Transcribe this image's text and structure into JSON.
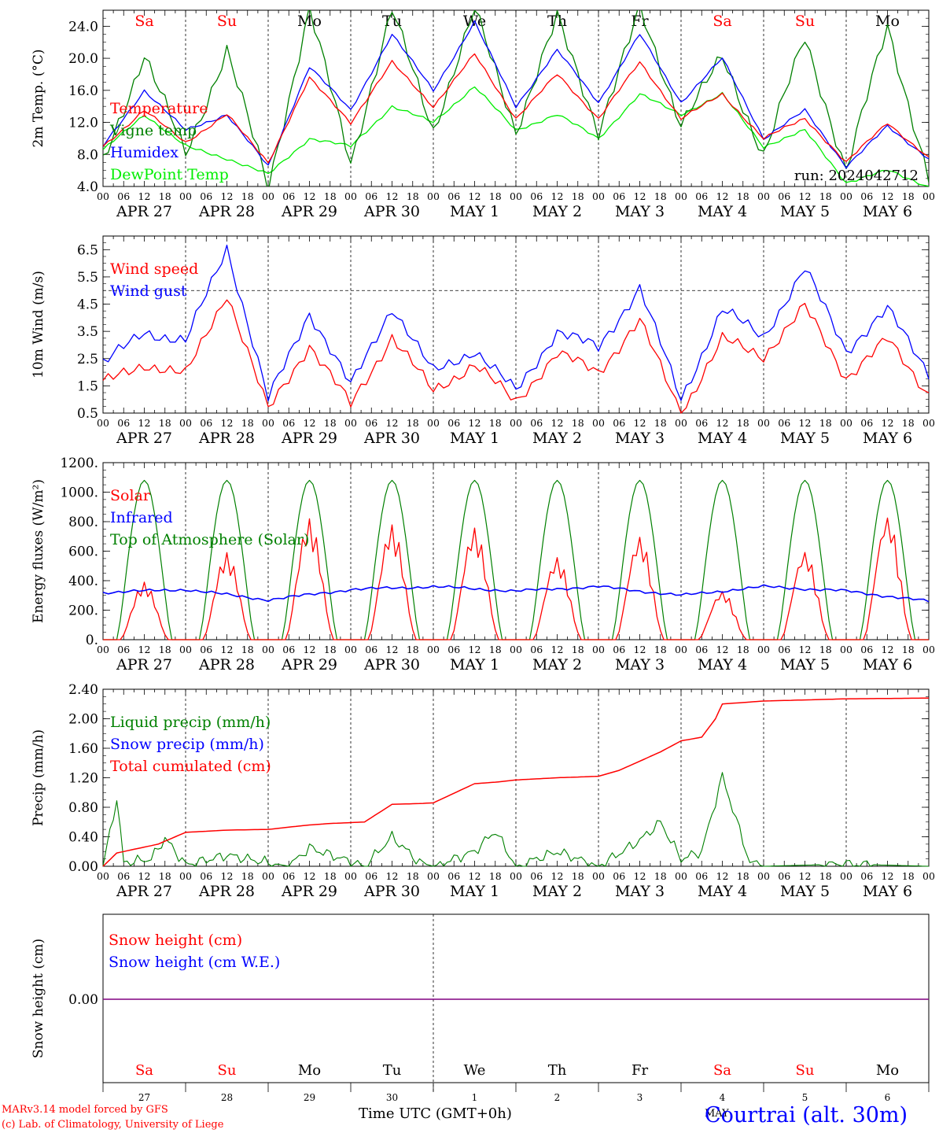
{
  "footer": {
    "model_line": "MARv3.14 model forced by GFS",
    "credit_line": "(c) Lab. of Climatology, University of Liege",
    "time_axis_label": "Time UTC (GMT+0h)",
    "month_label": "MAY",
    "station": "Courtrai (alt. 30m)"
  },
  "colors": {
    "red": "#ff0000",
    "green": "#008000",
    "blue": "#0000ff",
    "lightgreen": "#00ee00",
    "purple": "#800080"
  },
  "days": [
    "Sa",
    "Su",
    "Mo",
    "Tu",
    "We",
    "Th",
    "Fr",
    "Sa",
    "Su",
    "Mo"
  ],
  "weekend_flags": [
    true,
    true,
    false,
    false,
    false,
    false,
    false,
    true,
    true,
    false
  ],
  "date_labels": [
    "APR 27",
    "APR 28",
    "APR 29",
    "APR 30",
    "MAY  1",
    "MAY  2",
    "MAY  3",
    "MAY  4",
    "MAY  5",
    "MAY  6"
  ],
  "hour_labels": [
    "00",
    "06",
    "12",
    "18"
  ],
  "final_hour_label": "00",
  "bottom_day_numbers": [
    "27",
    "28",
    "29",
    "30",
    "1",
    "2",
    "3",
    "4",
    "5",
    "6"
  ],
  "chart_data": [
    {
      "type": "line",
      "ylabel": "2m Temp. (°C)",
      "ylim": [
        4,
        26
      ],
      "yticks": [
        "4.0",
        "8.0",
        "12.0",
        "16.0",
        "20.0",
        "24.0"
      ],
      "run_label": "run: 2024042712",
      "legend": [
        "Temperature",
        "Vigne temp",
        "Humidex",
        "DewPoint Temp"
      ],
      "x_hours": [
        0,
        12,
        24,
        36,
        48,
        60,
        72,
        84,
        96,
        108,
        120,
        132,
        144,
        156,
        168,
        180,
        192,
        204,
        216,
        228,
        240
      ],
      "series": [
        {
          "name": "Temperature",
          "color": "red",
          "values": [
            9,
            13.5,
            9.5,
            13,
            7,
            17.5,
            12,
            19.5,
            14,
            20.5,
            12.5,
            18,
            12.5,
            19.5,
            12.5,
            15.5,
            10,
            12.5,
            7,
            12,
            7.5
          ]
        },
        {
          "name": "Vigne temp",
          "color": "green",
          "values": [
            7,
            20.5,
            8,
            21,
            4,
            26,
            7,
            26,
            11,
            26,
            11,
            25,
            11,
            26,
            12,
            20,
            8,
            22.5,
            6,
            24,
            5
          ]
        },
        {
          "name": "Humidex",
          "color": "blue",
          "values": [
            9,
            16,
            11,
            13,
            6.5,
            19,
            13.5,
            23,
            16,
            24.5,
            14,
            21,
            14.5,
            23,
            14.5,
            20,
            10,
            13.5,
            6.5,
            11.5,
            7.5
          ]
        },
        {
          "name": "DewPoint Temp",
          "color": "lightgreen",
          "values": [
            8.5,
            13,
            9,
            7.5,
            5.5,
            10,
            9,
            14,
            12,
            16.5,
            11,
            13,
            10,
            15.5,
            13,
            15.5,
            9,
            11,
            4.5,
            6,
            4
          ]
        }
      ]
    },
    {
      "type": "line",
      "ylabel": "10m Wind (m/s)",
      "ylim": [
        0.5,
        7
      ],
      "yticks": [
        "0.5",
        "1.5",
        "2.5",
        "3.5",
        "4.5",
        "5.5",
        "6.5"
      ],
      "threshold": 5,
      "legend": [
        "Wind speed",
        "Wind gust"
      ],
      "x_hours": [
        0,
        12,
        24,
        36,
        48,
        60,
        72,
        84,
        96,
        108,
        120,
        132,
        144,
        156,
        168,
        180,
        192,
        204,
        216,
        228,
        240
      ],
      "series": [
        {
          "name": "Wind speed",
          "color": "red",
          "values": [
            1.6,
            2.3,
            1.9,
            4.9,
            0.6,
            3.0,
            0.8,
            3.3,
            1.3,
            2.3,
            0.9,
            2.7,
            2.0,
            3.9,
            0.5,
            3.2,
            2.6,
            4.4,
            1.8,
            3.2,
            1.2
          ]
        },
        {
          "name": "Wind gust",
          "color": "blue",
          "values": [
            2.3,
            3.5,
            3.1,
            6.6,
            1.0,
            4.2,
            1.5,
            4.4,
            2.0,
            2.8,
            1.3,
            3.5,
            2.9,
            5.1,
            1.0,
            4.3,
            3.3,
            5.8,
            2.8,
            4.3,
            2.0
          ]
        }
      ]
    },
    {
      "type": "line",
      "ylabel": "Energy fluxes (W/m²)",
      "ylim": [
        0,
        1200
      ],
      "yticks": [
        "0.",
        "200.",
        "400.",
        "600.",
        "800.",
        "1000.",
        "1200."
      ],
      "legend": [
        "Solar",
        "Infrared",
        "Top of Atmosphere (Solar)"
      ],
      "solar_peaks": [
        390,
        590,
        820,
        780,
        760,
        560,
        700,
        330,
        600,
        840
      ],
      "toa_peak": 1080,
      "infrared": {
        "x_hours": [
          0,
          24,
          48,
          72,
          96,
          120,
          144,
          168,
          192,
          216,
          240
        ],
        "values": [
          320,
          340,
          270,
          340,
          360,
          330,
          360,
          300,
          360,
          330,
          260
        ]
      }
    },
    {
      "type": "line",
      "ylabel": "Precip (mm/h)",
      "ylim": [
        0,
        2.4
      ],
      "yticks": [
        "0.00",
        "0.40",
        "0.80",
        "1.20",
        "1.60",
        "2.00",
        "2.40"
      ],
      "legend": [
        "Liquid precip (mm/h)",
        "Snow precip (mm/h)",
        "Total cumulated (cm)"
      ],
      "cumulated": {
        "x_hours": [
          0,
          4,
          16,
          24,
          36,
          48,
          60,
          66,
          76,
          84,
          92,
          96,
          108,
          114,
          120,
          132,
          144,
          150,
          162,
          168,
          174,
          178,
          180,
          192,
          216,
          240
        ],
        "values": [
          0,
          0.18,
          0.3,
          0.46,
          0.49,
          0.5,
          0.56,
          0.58,
          0.6,
          0.84,
          0.85,
          0.86,
          1.12,
          1.14,
          1.17,
          1.2,
          1.22,
          1.3,
          1.55,
          1.7,
          1.75,
          2.0,
          2.2,
          2.24,
          2.27,
          2.28
        ]
      },
      "liquid": {
        "x_hours": [
          0,
          4,
          6,
          14,
          18,
          24,
          36,
          54,
          60,
          76,
          84,
          92,
          96,
          108,
          114,
          120,
          132,
          144,
          156,
          162,
          168,
          174,
          180,
          188,
          192,
          216,
          240
        ],
        "values": [
          0,
          0.92,
          0.05,
          0.1,
          0.38,
          0.02,
          0.15,
          0,
          0.25,
          0,
          0.4,
          0.05,
          0,
          0.2,
          0.48,
          0,
          0.2,
          0,
          0.35,
          0.6,
          0.1,
          0.2,
          1.22,
          0.05,
          0,
          0.03,
          0
        ]
      }
    },
    {
      "type": "line",
      "ylabel": "Snow height (cm)",
      "zero_label": "0.00",
      "legend": [
        "Snow height (cm)",
        "Snow height (cm W.E.)"
      ],
      "values": [
        0
      ]
    }
  ]
}
